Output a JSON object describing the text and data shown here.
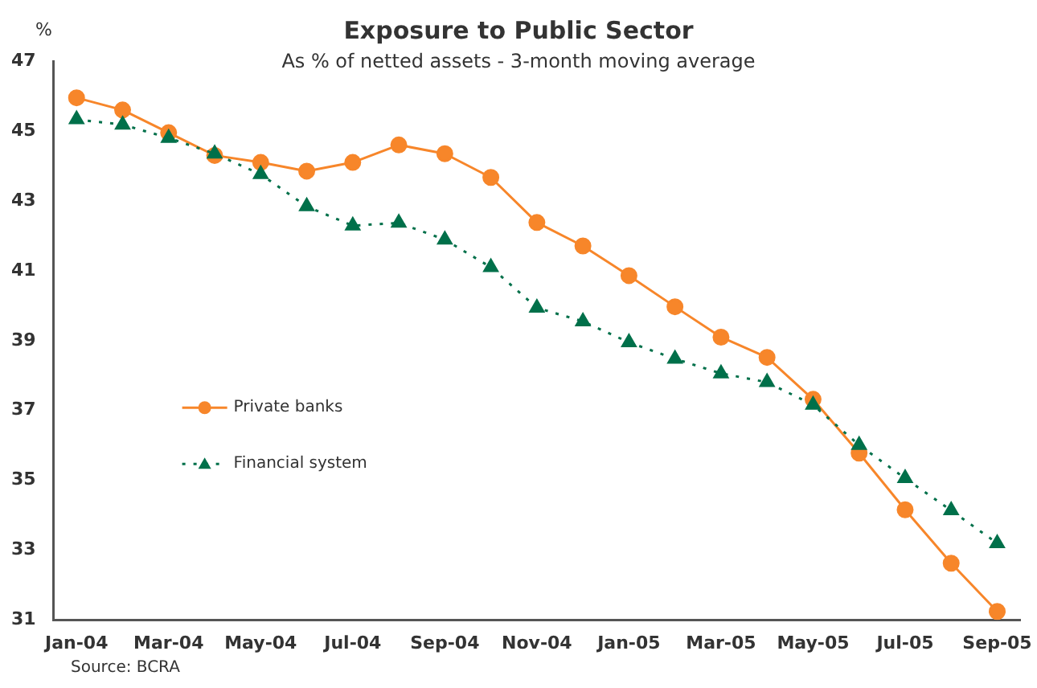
{
  "chart_data": {
    "type": "line",
    "title": "Exposure to Public Sector",
    "subtitle": "As % of netted assets - 3-month moving average",
    "ylabel": "%",
    "categories": [
      "Jan-04",
      null,
      "Mar-04",
      null,
      "May-04",
      null,
      "Jul-04",
      null,
      "Sep-04",
      null,
      "Nov-04",
      null,
      "Jan-05",
      null,
      "Mar-05",
      null,
      "May-05",
      null,
      "Jul-05",
      null,
      "Sep-05"
    ],
    "series": [
      {
        "name": "Private banks",
        "color": "#f7862a",
        "marker": "circle",
        "line_style": "solid",
        "values": [
          45.95,
          45.6,
          44.95,
          44.3,
          44.1,
          43.85,
          44.1,
          44.6,
          44.35,
          43.67,
          42.38,
          41.71,
          40.86,
          39.97,
          39.1,
          38.52,
          37.32,
          35.78,
          34.16,
          32.63,
          31.25
        ]
      },
      {
        "name": "Financial system",
        "color": "#00704a",
        "marker": "triangle",
        "line_style": "dotted",
        "values": [
          45.33,
          45.18,
          44.8,
          44.35,
          43.76,
          42.84,
          42.29,
          42.37,
          41.89,
          41.1,
          39.94,
          39.55,
          38.95,
          38.48,
          38.06,
          37.81,
          37.16,
          36.01,
          35.06,
          34.14,
          33.2
        ]
      }
    ],
    "ylim": [
      31,
      47
    ],
    "yticks": [
      31,
      33,
      35,
      37,
      39,
      41,
      43,
      45,
      47
    ],
    "grid": false,
    "legend": "left",
    "annotations": [
      "Source: BCRA"
    ]
  }
}
